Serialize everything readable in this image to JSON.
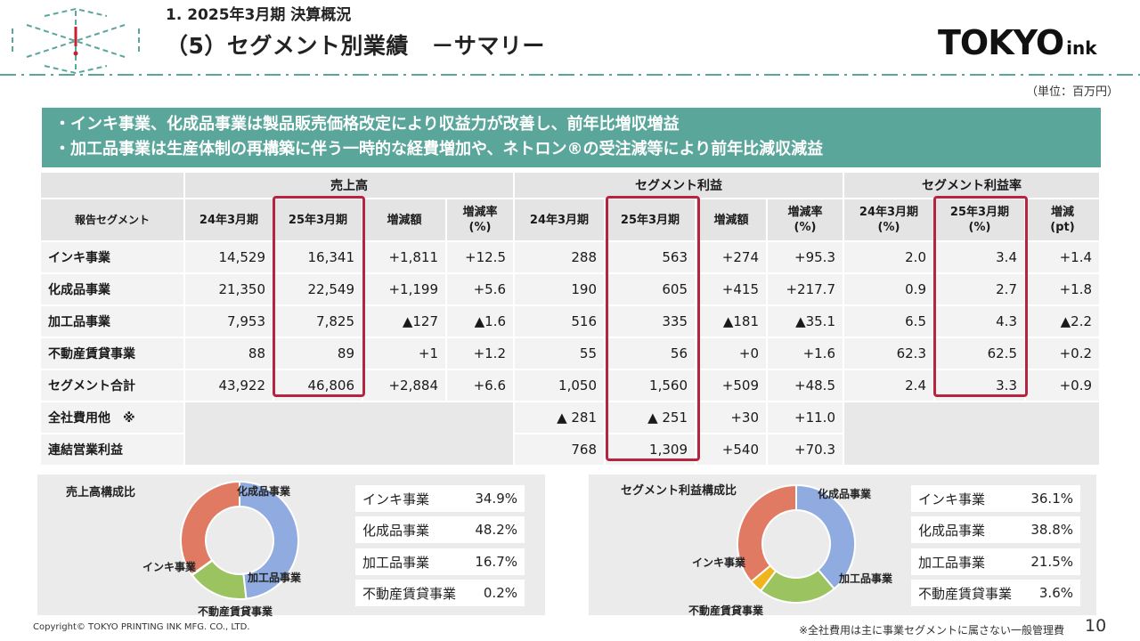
{
  "header": {
    "section_title": "1. 2025年3月期 決算概況",
    "page_title": "（5）セグメント別業績　－サマリー",
    "logo_main": "TOKYO",
    "logo_sub": "ink",
    "unit_note": "（単位：百万円）",
    "accent_color": "#5aa69b"
  },
  "banner": {
    "line1": "・インキ事業、化成品事業は製品販売価格改定により収益力が改善し、前年比増収増益",
    "line2": "・加工品事業は生産体制の再構築に伴う一時的な経費増加や、ネトロン®の受注減等により前年比減収減益"
  },
  "table": {
    "group_headers": [
      "売上高",
      "セグメント利益",
      "セグメント利益率"
    ],
    "row_header_label": "報告セグメント",
    "sub_headers": [
      [
        "24年3月期"
      ],
      [
        "25年3月期"
      ],
      [
        "増減額"
      ],
      [
        "増減率",
        "(%)"
      ],
      [
        "24年3月期"
      ],
      [
        "25年3月期"
      ],
      [
        "増減額"
      ],
      [
        "増減率",
        "(%)"
      ],
      [
        "24年3月期",
        "(%)"
      ],
      [
        "25年3月期",
        "(%)"
      ],
      [
        "増減",
        "(pt)"
      ]
    ],
    "rows": [
      {
        "label": "インキ事業",
        "cells": [
          "14,529",
          "16,341",
          "+1,811",
          "+12.5",
          "288",
          "563",
          "+274",
          "+95.3",
          "2.0",
          "3.4",
          "+1.4"
        ]
      },
      {
        "label": "化成品事業",
        "cells": [
          "21,350",
          "22,549",
          "+1,199",
          "+5.6",
          "190",
          "605",
          "+415",
          "+217.7",
          "0.9",
          "2.7",
          "+1.8"
        ]
      },
      {
        "label": "加工品事業",
        "cells": [
          "7,953",
          "7,825",
          "▲127",
          "▲1.6",
          "516",
          "335",
          "▲181",
          "▲35.1",
          "6.5",
          "4.3",
          "▲2.2"
        ]
      },
      {
        "label": "不動産賃貸事業",
        "cells": [
          "88",
          "89",
          "+1",
          "+1.2",
          "55",
          "56",
          "+0",
          "+1.6",
          "62.3",
          "62.5",
          "+0.2"
        ]
      },
      {
        "label": "セグメント合計",
        "cells": [
          "43,922",
          "46,806",
          "+2,884",
          "+6.6",
          "1,050",
          "1,560",
          "+509",
          "+48.5",
          "2.4",
          "3.3",
          "+0.9"
        ]
      }
    ],
    "extra_rows": [
      {
        "label": "全社費用他　※",
        "cells": [
          "▲ 281",
          "▲ 251",
          "+30",
          "+11.0"
        ]
      },
      {
        "label": "連結営業利益",
        "cells": [
          "768",
          "1,309",
          "+540",
          "+70.3"
        ]
      }
    ],
    "highlight_color": "#b8243f"
  },
  "sales_chart": {
    "title": "売上高構成比",
    "legend": [
      {
        "name": "インキ事業",
        "value": "34.9%"
      },
      {
        "name": "化成品事業",
        "value": "48.2%"
      },
      {
        "name": "加工品事業",
        "value": "16.7%"
      },
      {
        "name": "不動産賃貸事業",
        "value": "0.2%"
      }
    ]
  },
  "profit_chart": {
    "title": "セグメント利益構成比",
    "legend": [
      {
        "name": "インキ事業",
        "value": "36.1%"
      },
      {
        "name": "化成品事業",
        "value": "38.8%"
      },
      {
        "name": "加工品事業",
        "value": "21.5%"
      },
      {
        "name": "不動産賃貸事業",
        "value": "3.6%"
      }
    ]
  },
  "chart_data": [
    {
      "type": "pie",
      "title": "売上高構成比",
      "categories": [
        "化成品事業",
        "加工品事業",
        "不動産賃貸事業",
        "インキ事業"
      ],
      "values": [
        48.2,
        16.7,
        0.2,
        34.9
      ],
      "colors": [
        "#8fabe0",
        "#9bc360",
        "#f0b41c",
        "#e07a63"
      ]
    },
    {
      "type": "pie",
      "title": "セグメント利益構成比",
      "categories": [
        "化成品事業",
        "加工品事業",
        "不動産賃貸事業",
        "インキ事業"
      ],
      "values": [
        38.8,
        21.5,
        3.6,
        36.1
      ],
      "colors": [
        "#8fabe0",
        "#9bc360",
        "#f0b41c",
        "#e07a63"
      ]
    }
  ],
  "footer": {
    "copyright": "Copyright© TOKYO PRINTING INK MFG. CO., LTD.",
    "footnote": "※全社費用は主に事業セグメントに属さない一般管理費",
    "page_number": "10"
  }
}
